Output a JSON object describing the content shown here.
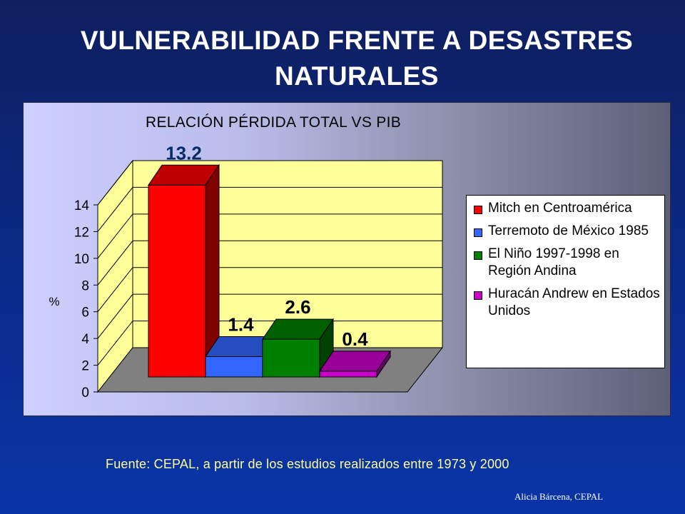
{
  "slide": {
    "title": "VULNERABILIDAD FRENTE A DESASTRES NATURALES",
    "source": "Fuente:  CEPAL, a partir de los estudios realizados entre 1973 y 2000",
    "author": "Alicia Bárcena, CEPAL"
  },
  "chart_data": {
    "type": "bar",
    "title": "RELACIÓN PÉRDIDA TOTAL VS PIB",
    "ylabel": "%",
    "ylim": [
      0,
      14
    ],
    "yticks": [
      0,
      2,
      4,
      6,
      8,
      10,
      12,
      14
    ],
    "grid": true,
    "legend_position": "right",
    "series": [
      {
        "name": "Mitch en Centroamérica",
        "value": 13.2,
        "label": "13.2",
        "color": "#ff0000"
      },
      {
        "name": "Terremoto de México 1985",
        "value": 1.4,
        "label": "1.4",
        "color": "#3366ff"
      },
      {
        "name": "El Niño 1997-1998 en Región Andina",
        "value": 2.6,
        "label": "2.6",
        "color": "#008000"
      },
      {
        "name": "Huracán Andrew en Estados Unidos",
        "value": 0.4,
        "label": "0.4",
        "color": "#cc00cc"
      }
    ]
  }
}
